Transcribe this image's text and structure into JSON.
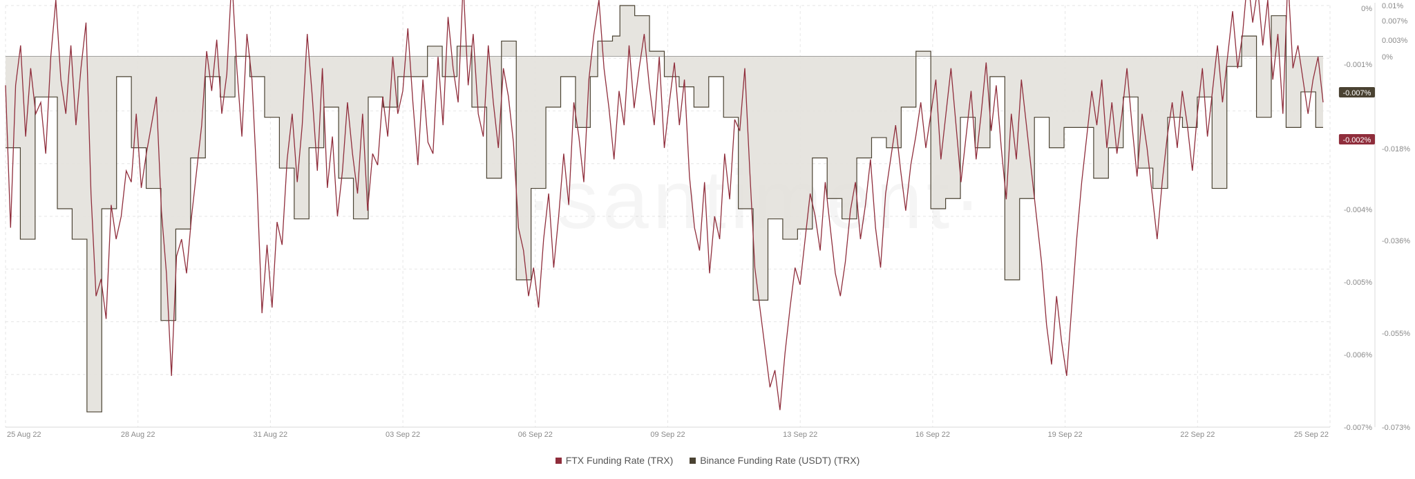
{
  "watermark": "·santiment·",
  "chart_data": {
    "type": "line",
    "title": "",
    "xlabel": "",
    "ylabel": "",
    "x_ticks": [
      "25 Aug 22",
      "28 Aug 22",
      "31 Aug 22",
      "03 Sep 22",
      "06 Sep 22",
      "09 Sep 22",
      "13 Sep 22",
      "16 Sep 22",
      "19 Sep 22",
      "22 Sep 22",
      "25 Sep 22"
    ],
    "y_left_ticks": [
      "0%",
      "-0.001%",
      "-0.002%",
      "-0.004%",
      "-0.005%",
      "-0.006%",
      "-0.007%"
    ],
    "y_right_ticks": [
      "0.01%",
      "0.007%",
      "0.003%",
      "0%",
      "-0.018%",
      "-0.036%",
      "-0.055%",
      "-0.073%"
    ],
    "y_left_range": [
      -0.0073,
      0.0001
    ],
    "y_right_range": [
      -0.073,
      0.01
    ],
    "series": [
      {
        "name": "FTX Funding Rate (TRX)",
        "color": "#8f2d3b",
        "axis": "left",
        "current_label": "-0.002%",
        "values": [
          -0.0013,
          -0.0038,
          -0.0013,
          -0.0006,
          -0.0022,
          -0.001,
          -0.0018,
          -0.0016,
          -0.0025,
          -0.0008,
          0.0002,
          -0.0012,
          -0.0018,
          -0.0006,
          -0.002,
          -0.001,
          -0.0002,
          -0.0032,
          -0.005,
          -0.0047,
          -0.0054,
          -0.0034,
          -0.004,
          -0.0036,
          -0.0028,
          -0.003,
          -0.0018,
          -0.0031,
          -0.0025,
          -0.002,
          -0.0015,
          -0.0035,
          -0.0046,
          -0.0064,
          -0.0043,
          -0.004,
          -0.0046,
          -0.0036,
          -0.0028,
          -0.002,
          -0.0007,
          -0.0014,
          -0.0005,
          -0.0018,
          -0.0011,
          0.0006,
          -0.001,
          -0.0022,
          -0.0004,
          -0.0012,
          -0.003,
          -0.0053,
          -0.0041,
          -0.0052,
          -0.0037,
          -0.0041,
          -0.0026,
          -0.0018,
          -0.003,
          -0.002,
          -0.0004,
          -0.0015,
          -0.0028,
          -0.001,
          -0.0031,
          -0.0022,
          -0.0036,
          -0.0028,
          -0.0016,
          -0.0025,
          -0.0032,
          -0.0018,
          -0.0035,
          -0.0025,
          -0.0027,
          -0.0015,
          -0.0022,
          -0.0008,
          -0.0018,
          -0.0014,
          -0.0003,
          -0.0016,
          -0.0027,
          -0.0012,
          -0.0023,
          -0.0025,
          -0.0008,
          -0.002,
          -0.0001,
          -0.001,
          -0.0016,
          0.0005,
          -0.0013,
          -0.0004,
          -0.0018,
          -0.0022,
          -0.0006,
          -0.0016,
          -0.0024,
          -0.001,
          -0.0015,
          -0.0023,
          -0.0038,
          -0.0042,
          -0.005,
          -0.0045,
          -0.0052,
          -0.004,
          -0.0032,
          -0.0045,
          -0.0036,
          -0.0025,
          -0.0034,
          -0.0016,
          -0.0022,
          -0.003,
          -0.0012,
          -0.0004,
          0.0002,
          -0.001,
          -0.0017,
          -0.0026,
          -0.0014,
          -0.002,
          -0.0006,
          -0.0017,
          -0.001,
          -0.0004,
          -0.0013,
          -0.002,
          -0.0008,
          -0.0024,
          -0.0016,
          -0.0009,
          -0.002,
          -0.0012,
          -0.0029,
          -0.0038,
          -0.0042,
          -0.003,
          -0.0046,
          -0.0036,
          -0.004,
          -0.0025,
          -0.0033,
          -0.0019,
          -0.0021,
          -0.001,
          -0.0028,
          -0.0045,
          -0.0052,
          -0.0059,
          -0.0066,
          -0.0063,
          -0.007,
          -0.006,
          -0.0052,
          -0.0045,
          -0.0048,
          -0.004,
          -0.0032,
          -0.0036,
          -0.0042,
          -0.003,
          -0.0038,
          -0.0046,
          -0.005,
          -0.0044,
          -0.0035,
          -0.003,
          -0.004,
          -0.0034,
          -0.0026,
          -0.0038,
          -0.0045,
          -0.0032,
          -0.0026,
          -0.002,
          -0.0028,
          -0.0035,
          -0.0027,
          -0.0022,
          -0.0016,
          -0.0024,
          -0.0018,
          -0.0012,
          -0.0026,
          -0.0018,
          -0.001,
          -0.002,
          -0.003,
          -0.0022,
          -0.0014,
          -0.0026,
          -0.0018,
          -0.0009,
          -0.0021,
          -0.0013,
          -0.0024,
          -0.0033,
          -0.0018,
          -0.0026,
          -0.0012,
          -0.002,
          -0.0028,
          -0.0036,
          -0.0044,
          -0.0055,
          -0.0062,
          -0.005,
          -0.0058,
          -0.0064,
          -0.0052,
          -0.004,
          -0.003,
          -0.0022,
          -0.0014,
          -0.002,
          -0.0012,
          -0.0024,
          -0.0016,
          -0.0025,
          -0.0018,
          -0.001,
          -0.002,
          -0.0029,
          -0.0018,
          -0.0024,
          -0.0032,
          -0.004,
          -0.003,
          -0.0022,
          -0.0016,
          -0.0024,
          -0.0014,
          -0.002,
          -0.0028,
          -0.0018,
          -0.001,
          -0.0022,
          -0.0014,
          -0.0006,
          -0.0016,
          -0.0008,
          0.0,
          -0.001,
          -0.0004,
          0.0006,
          -0.0002,
          0.0004,
          -0.0006,
          0.0002,
          -0.0012,
          -0.0004,
          -0.0018,
          0.0006,
          -0.001,
          -0.0006,
          -0.0012,
          -0.0018,
          -0.0012,
          -0.0008,
          -0.0016
        ],
        "values_step_note": ""
      },
      {
        "name": "Binance Funding Rate (USDT) (TRX)",
        "color": "#4a4232",
        "axis": "right",
        "current_label": "-0.007%",
        "values": [
          -0.018,
          -0.018,
          -0.036,
          -0.036,
          -0.008,
          -0.008,
          -0.008,
          -0.03,
          -0.03,
          -0.036,
          -0.036,
          -0.07,
          -0.07,
          -0.03,
          -0.03,
          -0.004,
          -0.004,
          -0.018,
          -0.018,
          -0.026,
          -0.026,
          -0.052,
          -0.052,
          -0.034,
          -0.034,
          -0.02,
          -0.02,
          -0.004,
          -0.004,
          -0.008,
          -0.008,
          0.0,
          0.0,
          -0.004,
          -0.004,
          -0.012,
          -0.012,
          -0.022,
          -0.022,
          -0.032,
          -0.032,
          -0.018,
          -0.018,
          -0.01,
          -0.01,
          -0.024,
          -0.024,
          -0.032,
          -0.032,
          -0.008,
          -0.008,
          -0.01,
          -0.01,
          -0.004,
          -0.004,
          -0.004,
          -0.004,
          0.002,
          0.002,
          -0.004,
          -0.004,
          0.002,
          0.002,
          -0.01,
          -0.01,
          -0.024,
          -0.024,
          0.003,
          0.003,
          -0.044,
          -0.044,
          -0.026,
          -0.026,
          -0.01,
          -0.01,
          -0.004,
          -0.004,
          -0.014,
          -0.014,
          -0.004,
          0.003,
          0.003,
          0.004,
          0.01,
          0.01,
          0.008,
          0.008,
          0.001,
          0.001,
          -0.004,
          -0.004,
          -0.006,
          -0.006,
          -0.01,
          -0.01,
          -0.004,
          -0.004,
          -0.012,
          -0.012,
          -0.03,
          -0.03,
          -0.048,
          -0.048,
          -0.032,
          -0.032,
          -0.036,
          -0.036,
          -0.034,
          -0.034,
          -0.02,
          -0.02,
          -0.028,
          -0.028,
          -0.032,
          -0.032,
          -0.02,
          -0.02,
          -0.016,
          -0.016,
          -0.018,
          -0.018,
          -0.01,
          -0.01,
          0.001,
          0.001,
          -0.03,
          -0.03,
          -0.028,
          -0.028,
          -0.012,
          -0.012,
          -0.018,
          -0.018,
          -0.004,
          -0.004,
          -0.044,
          -0.044,
          -0.028,
          -0.028,
          -0.012,
          -0.012,
          -0.018,
          -0.018,
          -0.014,
          -0.014,
          -0.014,
          -0.014,
          -0.024,
          -0.024,
          -0.018,
          -0.018,
          -0.008,
          -0.008,
          -0.022,
          -0.022,
          -0.026,
          -0.026,
          -0.012,
          -0.012,
          -0.014,
          -0.014,
          -0.008,
          -0.008,
          -0.026,
          -0.026,
          -0.002,
          -0.002,
          0.004,
          0.004,
          -0.012,
          -0.012,
          0.008,
          0.008,
          -0.014,
          -0.014,
          -0.007,
          -0.007,
          -0.014,
          -0.014
        ]
      }
    ]
  },
  "legend": [
    {
      "label": "FTX Funding Rate (TRX)",
      "color": "#8f2d3b"
    },
    {
      "label": "Binance Funding Rate (USDT) (TRX)",
      "color": "#4a4232"
    }
  ]
}
